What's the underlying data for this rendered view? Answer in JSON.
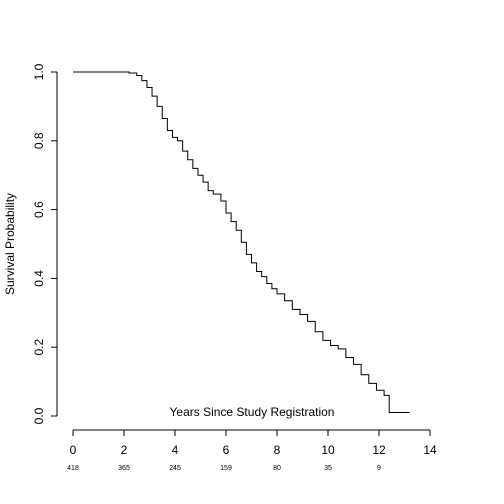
{
  "chart_data": {
    "type": "line",
    "step": true,
    "xlabel": "Years Since Study Registration",
    "ylabel": "Survival Probability",
    "xlim": [
      0,
      14
    ],
    "ylim": [
      0,
      1
    ],
    "x_ticks": [
      "0",
      "2",
      "4",
      "6",
      "8",
      "10",
      "12",
      "14"
    ],
    "y_ticks": [
      "0.0",
      "0.2",
      "0.4",
      "0.6",
      "0.8",
      "1.0"
    ],
    "grid": false,
    "risk_table": {
      "times": [
        0,
        2,
        4,
        6,
        8,
        10,
        12
      ],
      "counts": [
        "418",
        "365",
        "245",
        "159",
        "80",
        "35",
        "9"
      ]
    },
    "series": [
      {
        "line_color": "#000000",
        "x": [
          0,
          1.9,
          2.2,
          2.5,
          2.7,
          2.9,
          3.1,
          3.3,
          3.5,
          3.7,
          3.9,
          4.1,
          4.3,
          4.5,
          4.7,
          4.9,
          5.1,
          5.3,
          5.5,
          5.8,
          6.0,
          6.2,
          6.4,
          6.6,
          6.8,
          7.0,
          7.2,
          7.4,
          7.6,
          7.8,
          8.0,
          8.3,
          8.6,
          8.9,
          9.2,
          9.5,
          9.8,
          10.1,
          10.4,
          10.7,
          11.0,
          11.3,
          11.6,
          11.9,
          12.2,
          12.4,
          13.2
        ],
        "y": [
          1.0,
          1.0,
          0.997,
          0.99,
          0.975,
          0.955,
          0.93,
          0.9,
          0.865,
          0.83,
          0.81,
          0.8,
          0.77,
          0.745,
          0.72,
          0.7,
          0.68,
          0.655,
          0.645,
          0.625,
          0.59,
          0.565,
          0.54,
          0.505,
          0.47,
          0.445,
          0.42,
          0.405,
          0.385,
          0.37,
          0.355,
          0.335,
          0.31,
          0.295,
          0.275,
          0.245,
          0.22,
          0.205,
          0.195,
          0.17,
          0.15,
          0.12,
          0.095,
          0.075,
          0.06,
          0.01,
          0.01
        ]
      }
    ]
  }
}
